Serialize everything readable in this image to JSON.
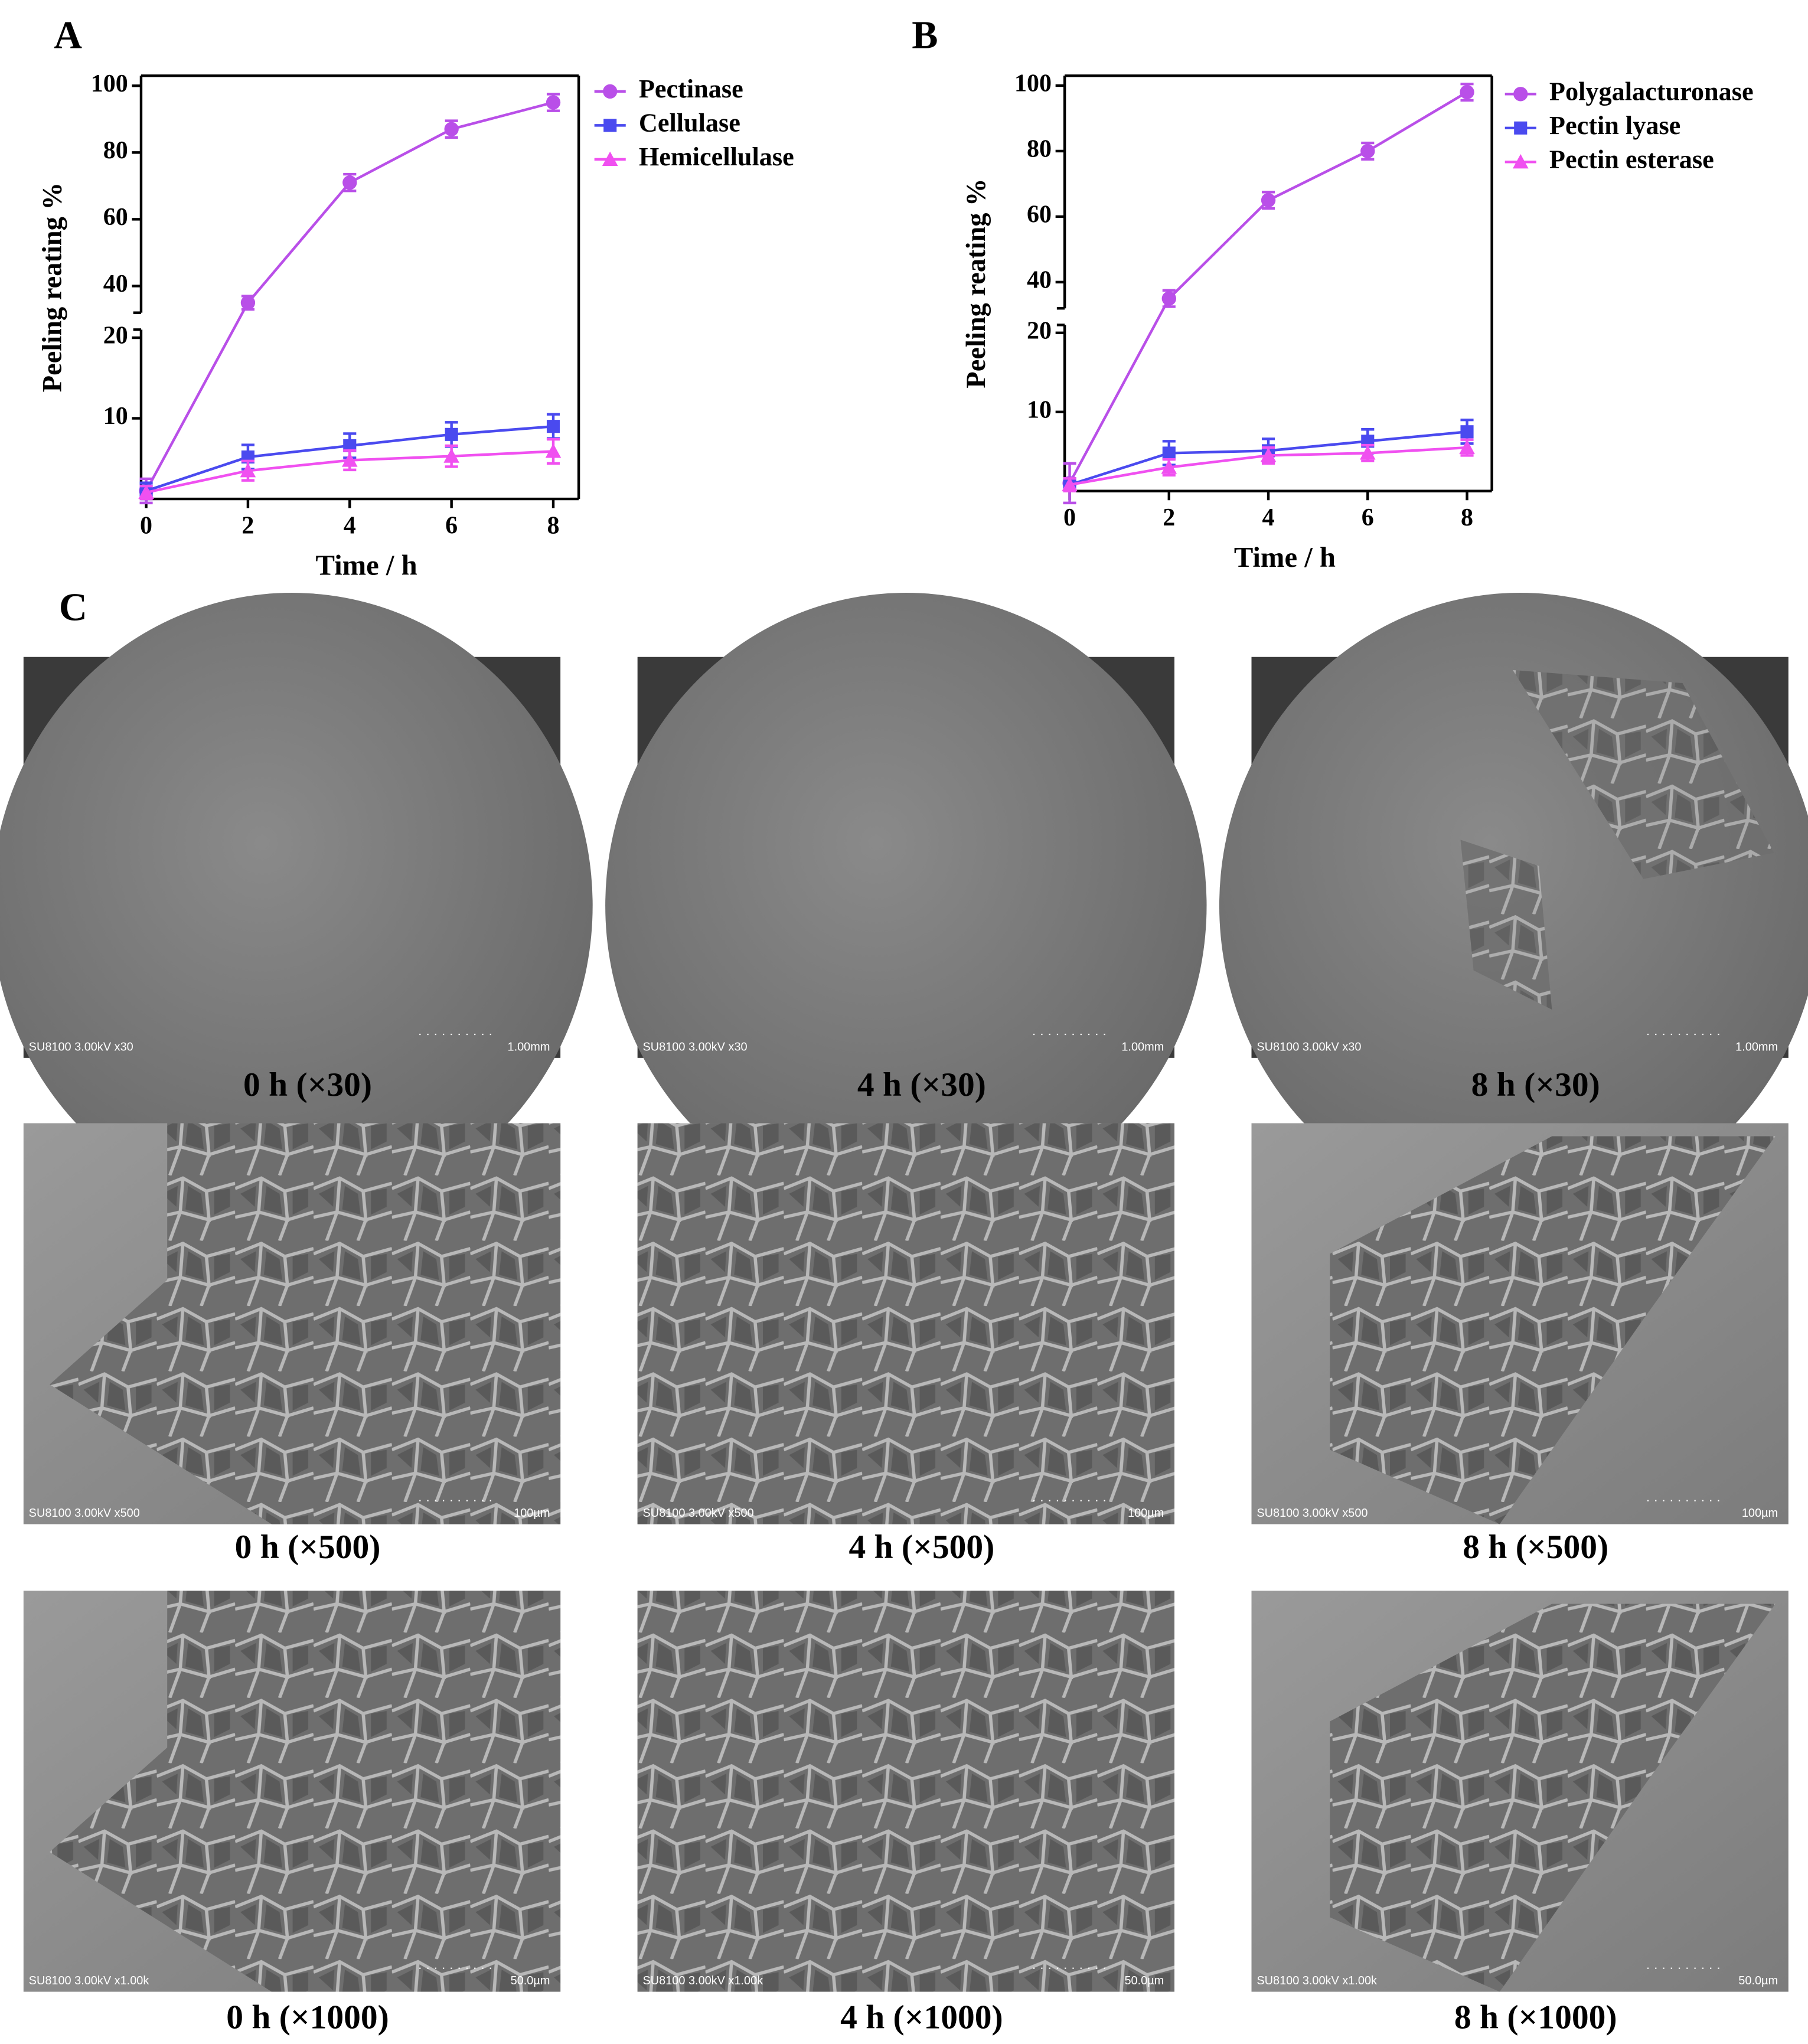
{
  "panel_labels": [
    "A",
    "B",
    "C"
  ],
  "chart_data": [
    {
      "type": "line",
      "ylabel": "Peeling reating %",
      "xlabel": "Time / h",
      "x": [
        0,
        2,
        4,
        6,
        8
      ],
      "xlim": [
        -0.1,
        8.5
      ],
      "xticks": [
        0,
        2,
        4,
        6,
        8
      ],
      "ylim": [
        0,
        103
      ],
      "y_break": [
        21,
        32
      ],
      "yticks": [
        10,
        20,
        40,
        60,
        80,
        100
      ],
      "legend": "right",
      "series": [
        {
          "name": "Pectinase",
          "color": "#b94fe8",
          "marker": "circle",
          "values": [
            1,
            35,
            71,
            87,
            95
          ],
          "errors": [
            1.5,
            2,
            2.5,
            2.5,
            2.5
          ]
        },
        {
          "name": "Cellulase",
          "color": "#4a4aef",
          "marker": "square",
          "values": [
            1,
            5.2,
            6.6,
            8,
            9
          ],
          "errors": [
            1,
            1.5,
            1.5,
            1.5,
            1.5
          ]
        },
        {
          "name": "Hemicellulase",
          "color": "#f050f0",
          "marker": "triangle",
          "values": [
            0.8,
            3.5,
            4.8,
            5.3,
            5.9
          ],
          "errors": [
            0.8,
            1.2,
            1.2,
            1.3,
            1.5
          ]
        }
      ]
    },
    {
      "type": "line",
      "ylabel": "Peeling reating %",
      "xlabel": "Time / h",
      "x": [
        0,
        2,
        4,
        6,
        8
      ],
      "xlim": [
        -0.1,
        8.5
      ],
      "xticks": [
        0,
        2,
        4,
        6,
        8
      ],
      "ylim": [
        0,
        103
      ],
      "y_break": [
        21,
        32
      ],
      "yticks": [
        10,
        20,
        40,
        60,
        80,
        100
      ],
      "legend": "right",
      "series": [
        {
          "name": "Polygalacturonase",
          "color": "#b94fe8",
          "marker": "circle",
          "values": [
            1,
            35,
            65,
            80,
            98
          ],
          "errors": [
            2.5,
            2.5,
            2.5,
            2.5,
            2.5
          ]
        },
        {
          "name": "Pectin lyase",
          "color": "#4a4aef",
          "marker": "square",
          "values": [
            0.8,
            4.8,
            5.1,
            6.3,
            7.5
          ],
          "errors": [
            0.8,
            1.5,
            1.5,
            1.5,
            1.5
          ]
        },
        {
          "name": "Pectin esterase",
          "color": "#f050f0",
          "marker": "triangle",
          "values": [
            0.8,
            3,
            4.5,
            4.8,
            5.5
          ],
          "errors": [
            0.8,
            1,
            1,
            1,
            1
          ]
        }
      ]
    }
  ],
  "sem": [
    {
      "caption": "0 h (×30)",
      "info": "SU8100 3.00kV x30",
      "scale": "1.00mm"
    },
    {
      "caption": "4 h (×30)",
      "info": "SU8100 3.00kV x30",
      "scale": "1.00mm"
    },
    {
      "caption": "8 h (×30)",
      "info": "SU8100 3.00kV x30",
      "scale": "1.00mm"
    },
    {
      "caption": "0 h (×500)",
      "info": "SU8100 3.00kV x500",
      "scale": "100µm"
    },
    {
      "caption": "4 h (×500)",
      "info": "SU8100 3.00kV x500",
      "scale": "100µm"
    },
    {
      "caption": "8 h (×500)",
      "info": "SU8100 3.00kV x500",
      "scale": "100µm"
    },
    {
      "caption": "0 h (×1000)",
      "info": "SU8100 3.00kV x1.00k",
      "scale": "50.0µm"
    },
    {
      "caption": "4 h (×1000)",
      "info": "SU8100 3.00kV x1.00k",
      "scale": "50.0µm"
    },
    {
      "caption": "8 h (×1000)",
      "info": "SU8100 3.00kV x1.00k",
      "scale": "50.0µm"
    }
  ]
}
